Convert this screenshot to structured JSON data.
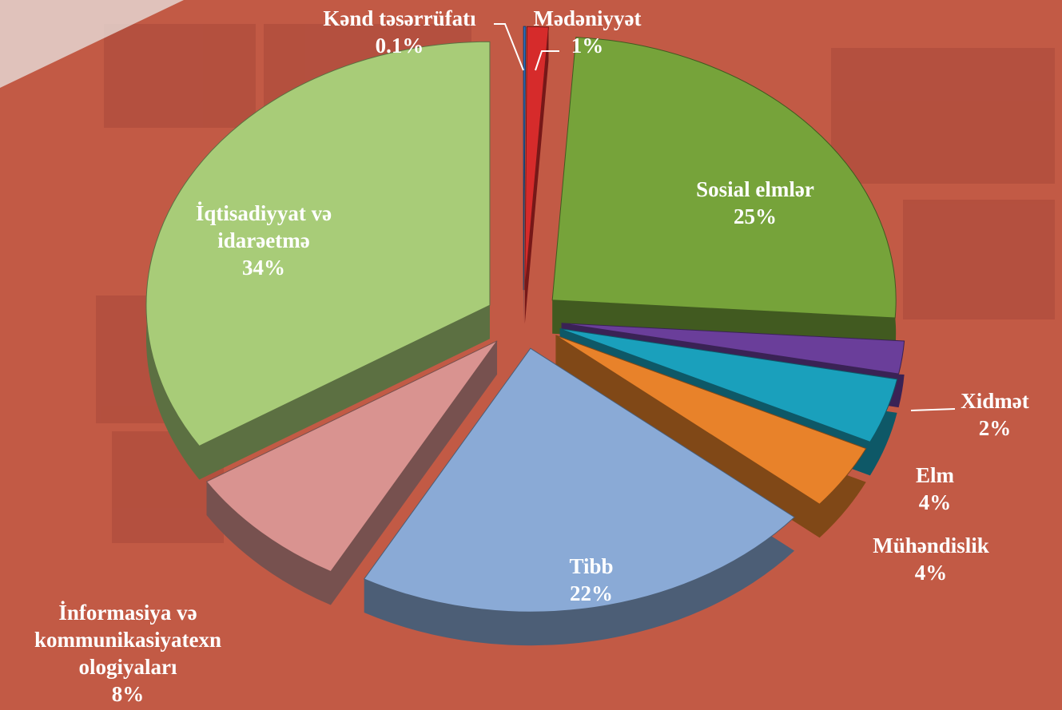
{
  "chart_data": {
    "type": "pie",
    "categories": [
      "Kənd təsərrüfatı",
      "Mədəniyyət",
      "Sosial elmlər",
      "Xidmət",
      "Elm",
      "Mühəndislik",
      "Tibb",
      "İnformasiya və\nkommunikasiyatexn\nologiyaları",
      "İqtisadiyyat və\nidarəetmə"
    ],
    "values": [
      0.1,
      1,
      25,
      2,
      4,
      4,
      22,
      8,
      34
    ],
    "value_labels": [
      "0.1%",
      "1%",
      "25%",
      "2%",
      "4%",
      "4%",
      "22%",
      "8%",
      "34%"
    ],
    "colors": [
      "#2e6fc0",
      "#d62b2b",
      "#76a33a",
      "#6a3e9a",
      "#1aa0bc",
      "#e8822a",
      "#8aaad6",
      "#d99390",
      "#a8cc78"
    ]
  }
}
